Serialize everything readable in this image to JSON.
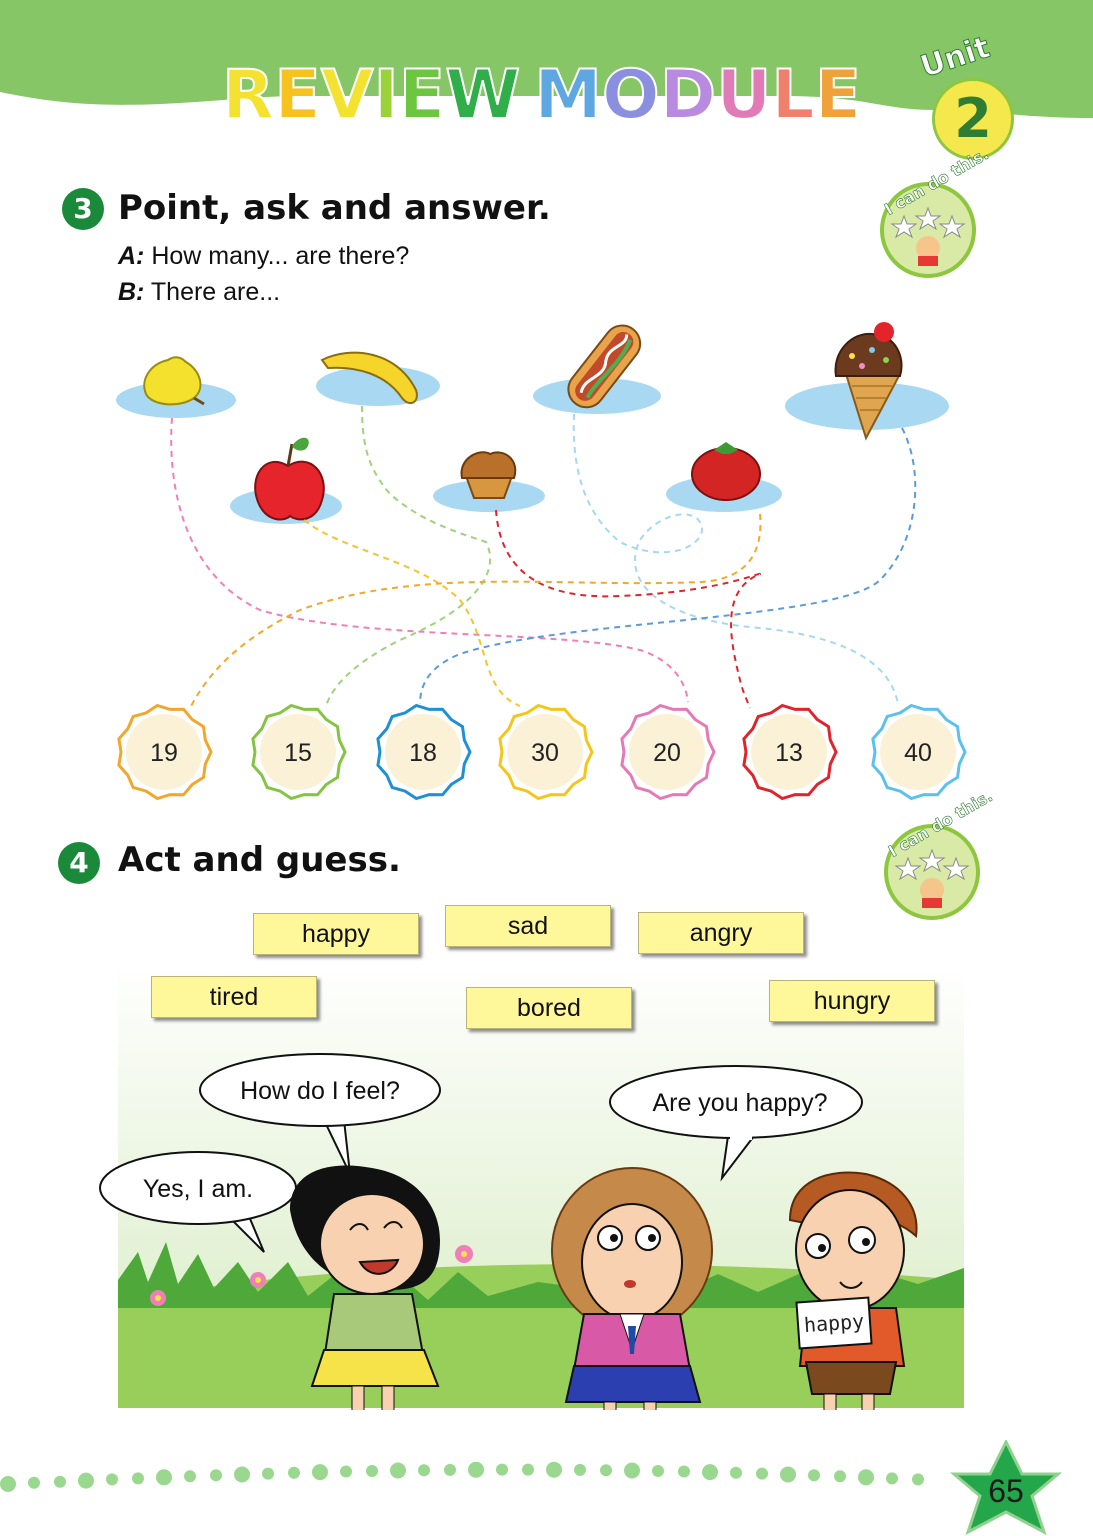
{
  "header": {
    "title_letters": [
      {
        "char": "R",
        "color": "#f3e22f"
      },
      {
        "char": "E",
        "color": "#f6c21d"
      },
      {
        "char": "V",
        "color": "#f3e22f"
      },
      {
        "char": "I",
        "color": "#9bd23a"
      },
      {
        "char": "E",
        "color": "#6cc63f"
      },
      {
        "char": "W",
        "color": "#2fae4a"
      },
      {
        "char": "M",
        "color": "#5ea7e0"
      },
      {
        "char": "O",
        "color": "#8b8fe0"
      },
      {
        "char": "D",
        "color": "#b88be0"
      },
      {
        "char": "U",
        "color": "#e07bb8"
      },
      {
        "char": "L",
        "color": "#f07f6b"
      },
      {
        "char": "E",
        "color": "#f0a23a"
      }
    ],
    "unit_label": "Unit",
    "unit_number": "2"
  },
  "section3": {
    "number": "3",
    "title": "Point, ask and answer.",
    "line_a_speaker": "A:",
    "line_a_text": "How many... are there?",
    "line_b_speaker": "B:",
    "line_b_text": "There are...",
    "badge_text": "I can do this."
  },
  "foods": [
    {
      "name": "pear-icon"
    },
    {
      "name": "banana-icon"
    },
    {
      "name": "hotdog-icon"
    },
    {
      "name": "ice-cream-icon"
    },
    {
      "name": "apple-icon"
    },
    {
      "name": "muffin-icon"
    },
    {
      "name": "tomato-icon"
    }
  ],
  "numbers": [
    {
      "value": "19",
      "color": "#f2a72b"
    },
    {
      "value": "15",
      "color": "#84c441"
    },
    {
      "value": "18",
      "color": "#1f8fd6"
    },
    {
      "value": "30",
      "color": "#f5c518"
    },
    {
      "value": "20",
      "color": "#e678b5"
    },
    {
      "value": "13",
      "color": "#e0242c"
    },
    {
      "value": "40",
      "color": "#5cc0ee"
    }
  ],
  "section4": {
    "number": "4",
    "title": "Act and guess.",
    "badge_text": "I can do this.",
    "word_cards": [
      "happy",
      "sad",
      "angry",
      "tired",
      "bored",
      "hungry"
    ]
  },
  "scene": {
    "bubble_feel": "How do I feel?",
    "bubble_happy_q": "Are you happy?",
    "bubble_yes": "Yes, I am.",
    "sign_word": "happy"
  },
  "footer": {
    "page_number": "65"
  }
}
